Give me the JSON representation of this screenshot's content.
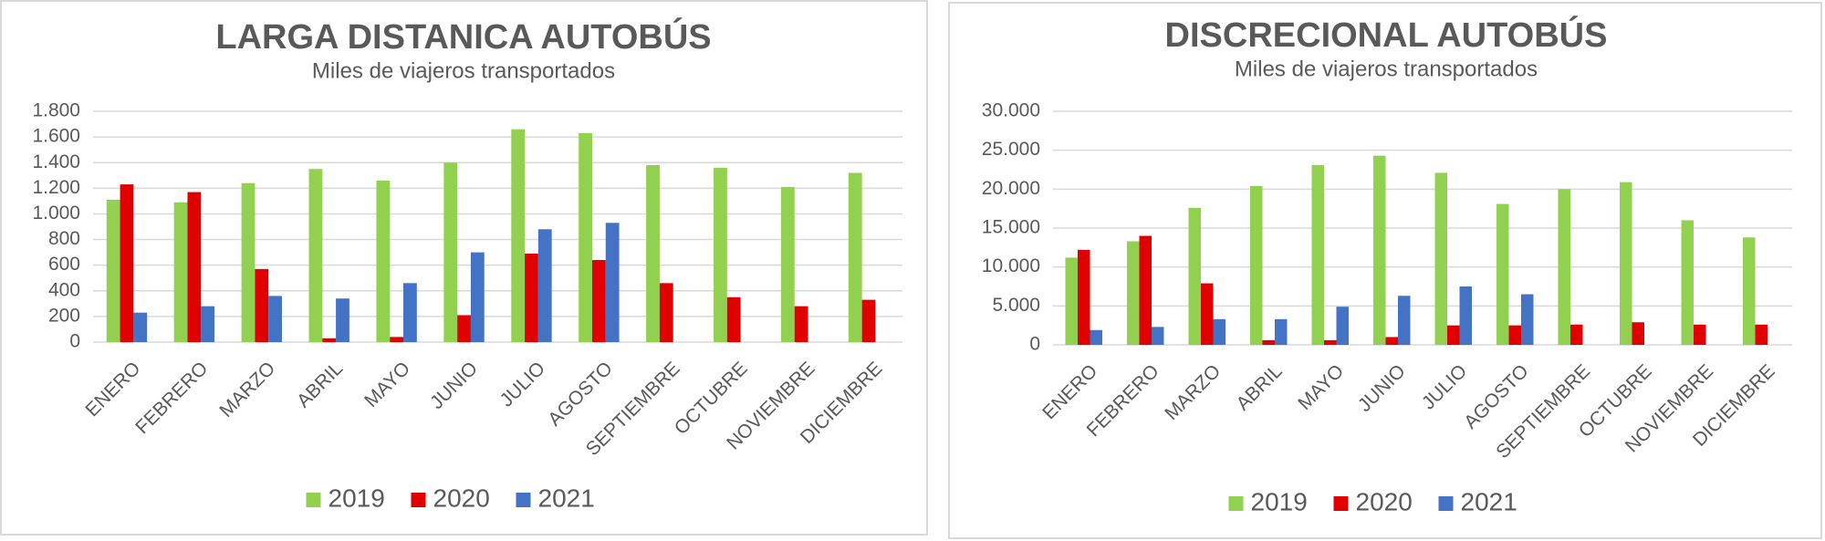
{
  "chart_data": [
    {
      "type": "bar",
      "title": "LARGA DISTANICA AUTOBÚS",
      "subtitle": "Miles de viajeros transportados",
      "categories": [
        "ENERO",
        "FEBRERO",
        "MARZO",
        "ABRIL",
        "MAYO",
        "JUNIO",
        "JULIO",
        "AGOSTO",
        "SEPTIEMBRE",
        "OCTUBRE",
        "NOVIEMBRE",
        "DICIEMBRE"
      ],
      "series": [
        {
          "name": "2019",
          "color": "#92d050",
          "values": [
            1110,
            1090,
            1240,
            1350,
            1260,
            1400,
            1660,
            1630,
            1380,
            1360,
            1210,
            1320
          ]
        },
        {
          "name": "2020",
          "color": "#e00000",
          "values": [
            1230,
            1170,
            570,
            30,
            40,
            210,
            690,
            640,
            460,
            350,
            280,
            330
          ]
        },
        {
          "name": "2021",
          "color": "#4472c4",
          "values": [
            230,
            280,
            360,
            340,
            460,
            700,
            880,
            930,
            null,
            null,
            null,
            null
          ]
        }
      ],
      "ylim": [
        0,
        1800
      ],
      "yticks": [
        0,
        {
          "value": 200,
          "label": "200"
        },
        {
          "value": 400,
          "label": "400"
        },
        {
          "value": 600,
          "label": "600"
        },
        {
          "value": 800,
          "label": "800"
        },
        {
          "value": 1000,
          "label": "1.000"
        },
        {
          "value": 1200,
          "label": "1.200"
        },
        {
          "value": 1400,
          "label": "1.400"
        },
        {
          "value": 1600,
          "label": "1.600"
        },
        {
          "value": 1800,
          "label": "1.800"
        }
      ],
      "grid": true,
      "legend": "bottom"
    },
    {
      "type": "bar",
      "title": "DISCRECIONAL AUTOBÚS",
      "subtitle": "Miles de viajeros transportados",
      "categories": [
        "ENERO",
        "FEBRERO",
        "MARZO",
        "ABRIL",
        "MAYO",
        "JUNIO",
        "JULIO",
        "AGOSTO",
        "SEPTIEMBRE",
        "OCTUBRE",
        "NOVIEMBRE",
        "DICIEMBRE"
      ],
      "series": [
        {
          "name": "2019",
          "color": "#92d050",
          "values": [
            11200,
            13300,
            17600,
            20400,
            23100,
            24300,
            22100,
            18100,
            20000,
            20900,
            16000,
            13800
          ]
        },
        {
          "name": "2020",
          "color": "#e00000",
          "values": [
            12200,
            14000,
            7900,
            600,
            600,
            1000,
            2500,
            2500,
            2600,
            2900,
            2600,
            2600
          ]
        },
        {
          "name": "2021",
          "color": "#4472c4",
          "values": [
            1900,
            2300,
            3300,
            3300,
            4900,
            6300,
            7500,
            6500,
            null,
            null,
            null,
            null
          ]
        }
      ],
      "ylim": [
        0,
        30000
      ],
      "yticks": [
        0,
        {
          "value": 5000,
          "label": "5.000"
        },
        {
          "value": 10000,
          "label": "10.000"
        },
        {
          "value": 15000,
          "label": "15.000"
        },
        {
          "value": 20000,
          "label": "20.000"
        },
        {
          "value": 25000,
          "label": "25.000"
        },
        {
          "value": 30000,
          "label": "30.000"
        }
      ],
      "grid": true,
      "legend": "bottom"
    }
  ]
}
